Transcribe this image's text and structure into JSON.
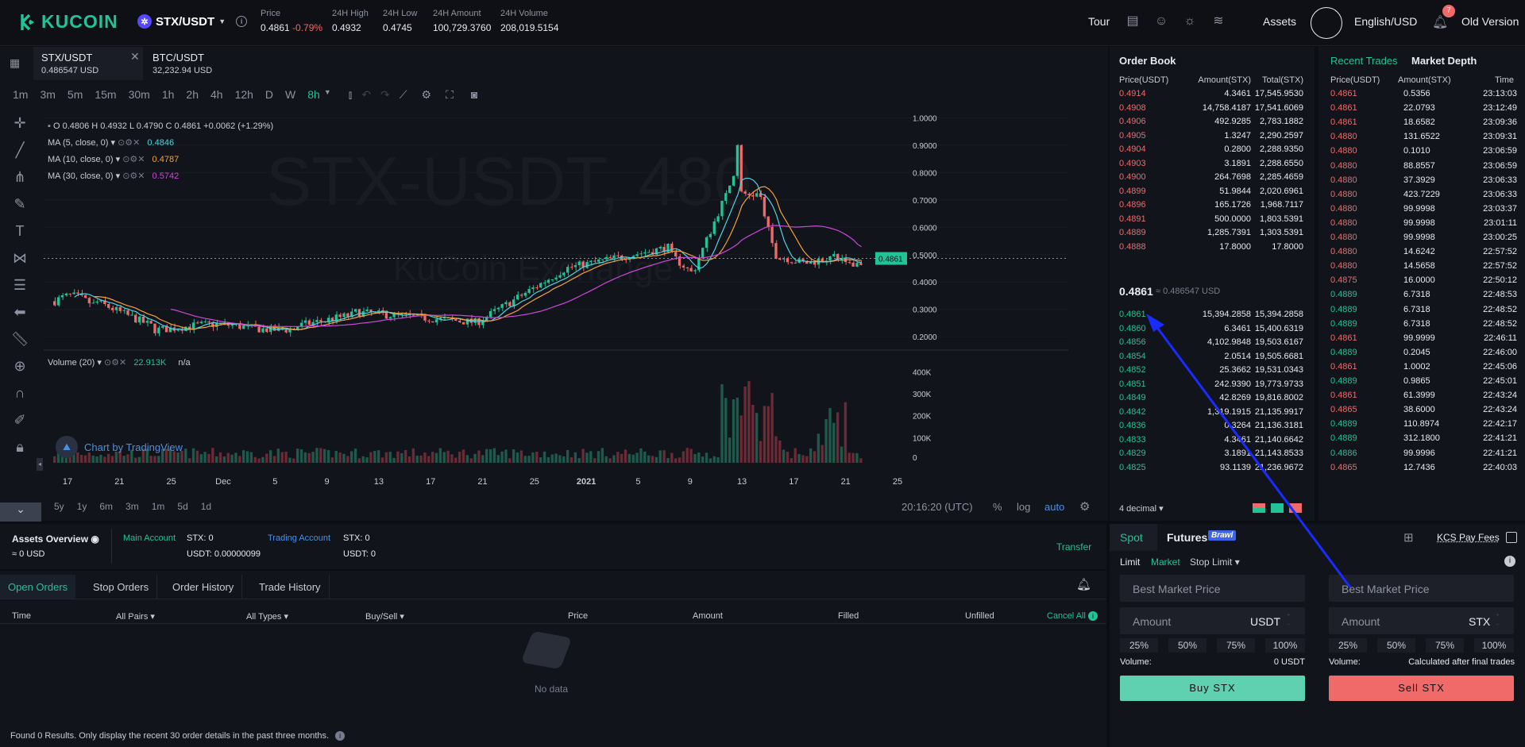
{
  "header": {
    "brand": "KUCOIN",
    "pair": "STX/USDT",
    "stats": [
      {
        "label": "Price",
        "value": "0.4861",
        "change": "-0.79%"
      },
      {
        "label": "24H High",
        "value": "0.4932"
      },
      {
        "label": "24H Low",
        "value": "0.4745"
      },
      {
        "label": "24H Amount",
        "value": "100,729.3760"
      },
      {
        "label": "24H Volume",
        "value": "208,019.5154"
      }
    ],
    "tour": "Tour",
    "assets": "Assets",
    "lang": "English/USD",
    "notif_count": "7",
    "old": "Old Version"
  },
  "chart_tabs": [
    {
      "pair": "STX/USDT",
      "price": "0.486547 USD"
    },
    {
      "pair": "BTC/USDT",
      "price": "32,232.94 USD"
    }
  ],
  "timeframes": [
    "1m",
    "3m",
    "5m",
    "15m",
    "30m",
    "1h",
    "2h",
    "4h",
    "12h",
    "D",
    "W",
    "8h"
  ],
  "selected_timeframe": "8h",
  "legend": {
    "ohlc": "O 0.4806  H 0.4932  L 0.4790  C 0.4861  +0.0062 (+1.29%)",
    "ma5": "MA (5, close, 0)",
    "ma5v": "0.4846",
    "ma10": "MA (10, close, 0)",
    "ma10v": "0.4787",
    "ma30": "MA (30, close, 0)",
    "ma30v": "0.5742",
    "vol": "Volume (20)",
    "volv": "22.913K",
    "voln": "n/a",
    "watermark": "STX-USDT, 480",
    "watermark2": "KuCoin Exchange",
    "tv": "Chart by TradingView"
  },
  "chart_data": {
    "type": "candlestick",
    "y_ticks": [
      "1.0000",
      "0.9000",
      "0.8000",
      "0.7000",
      "0.6000",
      "0.5000",
      "0.4000",
      "0.3000",
      "0.2000"
    ],
    "vol_ticks": [
      "400K",
      "300K",
      "200K",
      "100K",
      "0"
    ],
    "x_ticks": [
      "17",
      "21",
      "25",
      "Dec",
      "5",
      "9",
      "13",
      "17",
      "21",
      "25",
      "2021",
      "5",
      "9",
      "13",
      "17",
      "21",
      "25"
    ],
    "last_price": "0.4861",
    "ylim": [
      0.16,
      1.03
    ]
  },
  "ranges": [
    "5y",
    "1y",
    "6m",
    "3m",
    "1m",
    "5d",
    "1d"
  ],
  "clock": "20:16:20 (UTC)",
  "scale_opts": [
    "%",
    "log",
    "auto"
  ],
  "orderbook": {
    "title": "Order Book",
    "cols": [
      "Price(USDT)",
      "Amount(STX)",
      "Total(STX)"
    ],
    "asks": [
      [
        "0.4914",
        "4.3461",
        "17,545.9530"
      ],
      [
        "0.4908",
        "14,758.4187",
        "17,541.6069"
      ],
      [
        "0.4906",
        "492.9285",
        "2,783.1882"
      ],
      [
        "0.4905",
        "1.3247",
        "2,290.2597"
      ],
      [
        "0.4904",
        "0.2800",
        "2,288.9350"
      ],
      [
        "0.4903",
        "3.1891",
        "2,288.6550"
      ],
      [
        "0.4900",
        "264.7698",
        "2,285.4659"
      ],
      [
        "0.4899",
        "51.9844",
        "2,020.6961"
      ],
      [
        "0.4896",
        "165.1726",
        "1,968.7117"
      ],
      [
        "0.4891",
        "500.0000",
        "1,803.5391"
      ],
      [
        "0.4889",
        "1,285.7391",
        "1,303.5391"
      ],
      [
        "0.4888",
        "17.8000",
        "17.8000"
      ]
    ],
    "mid": "0.4861",
    "mid_usd": "≈ 0.486547 USD",
    "bids": [
      [
        "0.4861",
        "15,394.2858",
        "15,394.2858"
      ],
      [
        "0.4860",
        "6.3461",
        "15,400.6319"
      ],
      [
        "0.4856",
        "4,102.9848",
        "19,503.6167"
      ],
      [
        "0.4854",
        "2.0514",
        "19,505.6681"
      ],
      [
        "0.4852",
        "25.3662",
        "19,531.0343"
      ],
      [
        "0.4851",
        "242.9390",
        "19,773.9733"
      ],
      [
        "0.4849",
        "42.8269",
        "19,816.8002"
      ],
      [
        "0.4842",
        "1,319.1915",
        "21,135.9917"
      ],
      [
        "0.4836",
        "0.3264",
        "21,136.3181"
      ],
      [
        "0.4833",
        "4.3461",
        "21,140.6642"
      ],
      [
        "0.4829",
        "3.1891",
        "21,143.8533"
      ],
      [
        "0.4825",
        "93.1139",
        "21,236.9672"
      ]
    ],
    "decimal": "4 decimal"
  },
  "recent": {
    "tab1": "Recent Trades",
    "tab2": "Market Depth",
    "cols": [
      "Price(USDT)",
      "Amount(STX)",
      "Time"
    ],
    "rows": [
      [
        "0.4861",
        "0.5356",
        "23:13:03",
        "r"
      ],
      [
        "0.4861",
        "22.0793",
        "23:12:49",
        "r"
      ],
      [
        "0.4861",
        "18.6582",
        "23:09:36",
        "r"
      ],
      [
        "0.4880",
        "131.6522",
        "23:09:31",
        "r"
      ],
      [
        "0.4880",
        "0.1010",
        "23:06:59",
        "r"
      ],
      [
        "0.4880",
        "88.8557",
        "23:06:59",
        "r"
      ],
      [
        "0.4880",
        "37.3929",
        "23:06:33",
        "r"
      ],
      [
        "0.4880",
        "423.7229",
        "23:06:33",
        "r"
      ],
      [
        "0.4880",
        "99.9998",
        "23:03:37",
        "r"
      ],
      [
        "0.4880",
        "99.9998",
        "23:01:11",
        "r"
      ],
      [
        "0.4880",
        "99.9998",
        "23:00:25",
        "r"
      ],
      [
        "0.4880",
        "14.6242",
        "22:57:52",
        "r"
      ],
      [
        "0.4880",
        "14.5658",
        "22:57:52",
        "r"
      ],
      [
        "0.4875",
        "16.0000",
        "22:50:12",
        "r"
      ],
      [
        "0.4889",
        "6.7318",
        "22:48:53",
        "g"
      ],
      [
        "0.4889",
        "6.7318",
        "22:48:52",
        "g"
      ],
      [
        "0.4889",
        "6.7318",
        "22:48:52",
        "g"
      ],
      [
        "0.4861",
        "99.9999",
        "22:46:11",
        "r"
      ],
      [
        "0.4889",
        "0.2045",
        "22:46:00",
        "g"
      ],
      [
        "0.4861",
        "1.0002",
        "22:45:06",
        "r"
      ],
      [
        "0.4889",
        "0.9865",
        "22:45:01",
        "g"
      ],
      [
        "0.4861",
        "61.3999",
        "22:43:24",
        "r"
      ],
      [
        "0.4865",
        "38.6000",
        "22:43:24",
        "r"
      ],
      [
        "0.4889",
        "110.8974",
        "22:42:17",
        "g"
      ],
      [
        "0.4889",
        "312.1800",
        "22:41:21",
        "g"
      ],
      [
        "0.4886",
        "99.9996",
        "22:41:21",
        "g"
      ],
      [
        "0.4865",
        "12.7436",
        "22:40:03",
        "r"
      ]
    ]
  },
  "assets": {
    "title": "Assets Overview",
    "total": "≈ 0 USD",
    "main": "Main Account",
    "main_stx": "STX: 0",
    "main_usdt": "USDT: 0.00000099",
    "trading": "Trading Account",
    "trad_stx": "STX: 0",
    "trad_usdt": "USDT: 0",
    "transfer": "Transfer"
  },
  "orders": {
    "tabs": [
      "Open Orders",
      "Stop Orders",
      "Order History",
      "Trade History"
    ],
    "cols": [
      "Time",
      "All Pairs",
      "All Types",
      "Buy/Sell",
      "Price",
      "Amount",
      "Filled",
      "Unfilled",
      "Cancel All"
    ],
    "nodata": "No data",
    "footer": "Found 0 Results. Only display the recent 30 order details in the past three months."
  },
  "trade": {
    "tab_spot": "Spot",
    "tab_futures": "Futures",
    "futures_badge": "Brawl",
    "kcs": "KCS Pay Fees",
    "types": [
      "Limit",
      "Market",
      "Stop Limit"
    ],
    "buy": {
      "price_ph": "Best Market Price",
      "amount_ph": "Amount",
      "unit": "USDT",
      "pcts": [
        "25%",
        "50%",
        "75%",
        "100%"
      ],
      "vol_label": "Volume:",
      "vol": "0 USDT",
      "btn": "Buy STX"
    },
    "sell": {
      "price_ph": "Best Market Price",
      "amount_ph": "Amount",
      "unit": "STX",
      "pcts": [
        "25%",
        "50%",
        "75%",
        "100%"
      ],
      "vol_label": "Volume:",
      "vol": "Calculated after final trades",
      "btn": "Sell STX"
    }
  },
  "colors": {
    "up": "#21c397",
    "down": "#f06a6a",
    "accent": "#21c397"
  }
}
